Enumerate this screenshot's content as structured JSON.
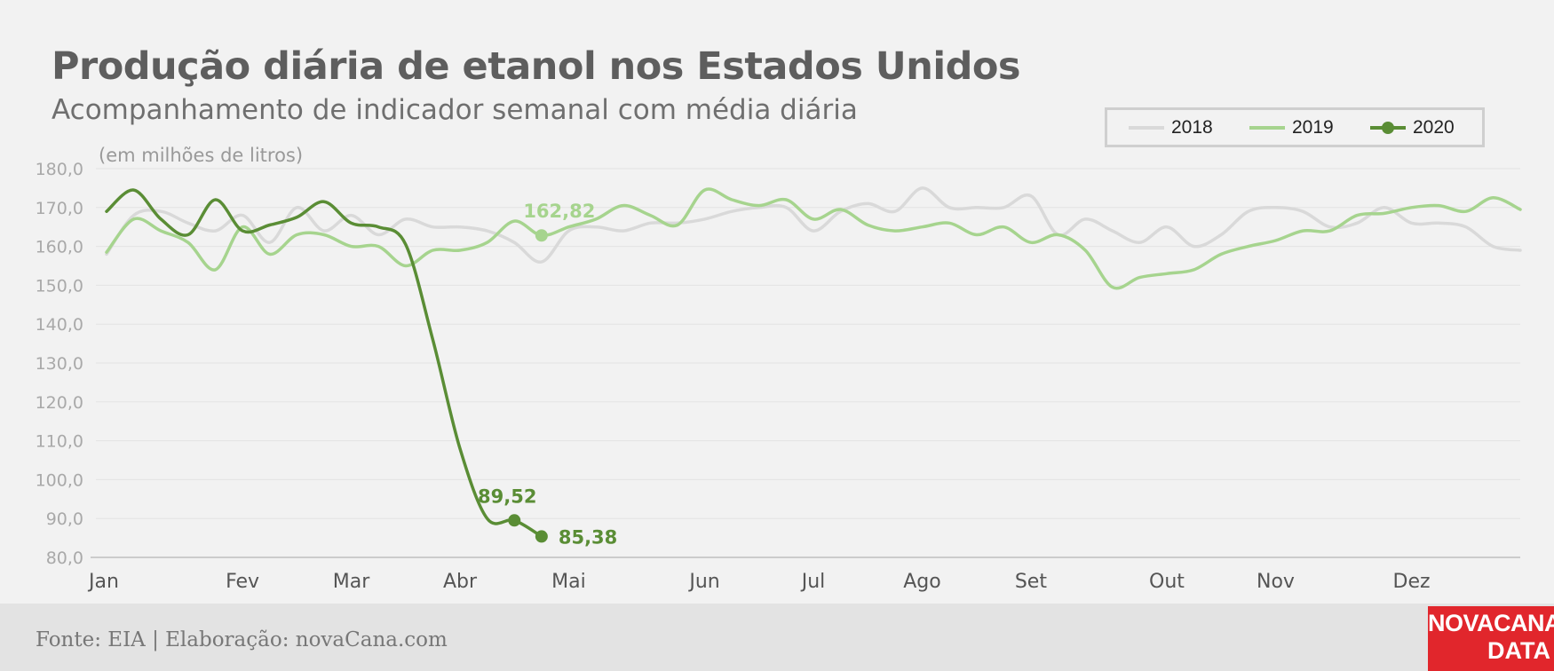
{
  "title": "Produção diária de etanol nos Estados Unidos",
  "subtitle": "Acompanhamento de indicador semanal com média diária",
  "source": "Fonte: EIA | Elaboração: novaCana.com",
  "logo": {
    "line1": "NOVACANA",
    "line2": "DATA"
  },
  "colors": {
    "2018": "#d9d9d9",
    "2019": "#a6d48e",
    "2020": "#5a8d35",
    "background": "#f2f2f2",
    "logo": "#e1262c"
  },
  "chart_data": {
    "type": "line",
    "unit_label": "(em milhões de litros)",
    "x_unit": "week of year",
    "xlim": [
      1,
      53
    ],
    "ylim": [
      80,
      180
    ],
    "y_ticks": [
      "80,0",
      "90,0",
      "100,0",
      "110,0",
      "120,0",
      "130,0",
      "140,0",
      "150,0",
      "160,0",
      "170,0",
      "180,0"
    ],
    "x_ticks": [
      {
        "label": "Jan",
        "x": 1
      },
      {
        "label": "Fev",
        "x": 6
      },
      {
        "label": "Mar",
        "x": 10
      },
      {
        "label": "Abr",
        "x": 14
      },
      {
        "label": "Mai",
        "x": 18
      },
      {
        "label": "Jun",
        "x": 23
      },
      {
        "label": "Jul",
        "x": 27
      },
      {
        "label": "Ago",
        "x": 31
      },
      {
        "label": "Set",
        "x": 35
      },
      {
        "label": "Out",
        "x": 40
      },
      {
        "label": "Nov",
        "x": 44
      },
      {
        "label": "Dez",
        "x": 49
      }
    ],
    "grid": true,
    "legend_position": "top-right",
    "series": [
      {
        "name": "2018",
        "color": "#d9d9d9",
        "markers": false,
        "values": [
          158,
          168,
          169,
          166,
          164,
          168,
          161,
          170,
          164,
          168,
          163,
          167,
          165,
          165,
          164,
          161,
          156,
          164,
          165,
          164,
          166,
          166,
          167,
          169,
          170,
          170,
          164,
          169,
          171,
          169,
          175,
          170,
          170,
          170,
          173,
          163,
          167,
          164,
          161,
          165,
          160,
          163,
          169,
          170,
          169,
          165,
          166,
          170,
          166,
          166,
          165,
          160,
          159
        ]
      },
      {
        "name": "2019",
        "color": "#a6d48e",
        "markers": false,
        "values": [
          158.5,
          167,
          164,
          161,
          154,
          165,
          158,
          163,
          163,
          160,
          160,
          155,
          159,
          159,
          161,
          166.5,
          162.82,
          165,
          167,
          170.5,
          168,
          165.5,
          174.5,
          172,
          170.5,
          172,
          167,
          169.5,
          165.5,
          164,
          165,
          166,
          163,
          165,
          161,
          163,
          159,
          149.5,
          152,
          153,
          154,
          158,
          160,
          161.5,
          164,
          164,
          168,
          168.5,
          170,
          170.5,
          169,
          172.5,
          169.5
        ]
      },
      {
        "name": "2020",
        "color": "#5a8d35",
        "markers": false,
        "values": [
          169,
          174.5,
          167,
          163,
          172,
          164,
          165.5,
          167.5,
          171.5,
          166,
          165,
          160.5,
          136,
          108,
          90,
          89.52,
          85.38
        ]
      }
    ],
    "annotations": [
      {
        "series": "2019",
        "x": 17,
        "y": 162.82,
        "text": "162,82",
        "color": "#a6d48e",
        "position": "above"
      },
      {
        "series": "2020",
        "x": 16,
        "y": 89.52,
        "text": "89,52",
        "color": "#5a8d35",
        "position": "above"
      },
      {
        "series": "2020",
        "x": 17,
        "y": 85.38,
        "text": "85,38",
        "color": "#5a8d35",
        "position": "right"
      }
    ]
  }
}
